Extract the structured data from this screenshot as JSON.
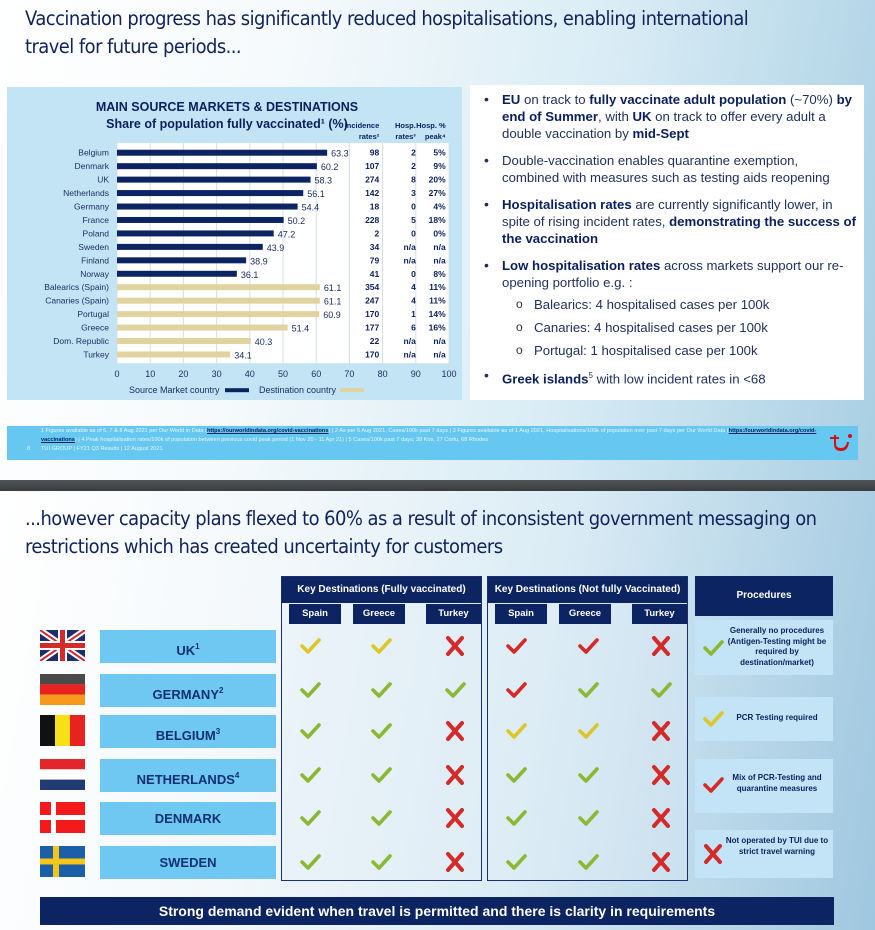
{
  "slide1": {
    "title": "Vaccination progress has significantly reduced hospitalisations, enabling international travel for future periods...",
    "title_line1": "Vaccination progress has significantly reduced hospitalisations, enabling international",
    "title_line2": "travel for future periods...",
    "bullets": {
      "b1": {
        "p1": "EU",
        "p2": " on track to ",
        "p3": "fully vaccinate adult population",
        "p4": " (~70%) ",
        "p5": "by end of Summer",
        "p6": ", with ",
        "p7": "UK",
        "p8": " on track to offer every adult a double vaccination by ",
        "p9": "mid-Sept"
      },
      "b2": "Double-vaccination enables quarantine exemption, combined with measures such as testing aids reopening",
      "b3": {
        "p1": "Hospitalisation rates",
        "p2": " are currently significantly lower, in spite of rising incident rates, ",
        "p3": "demonstrating the success of the vaccination"
      },
      "b4": {
        "p1": "Low hospitalisation rates",
        "p2": " across markets support our re-opening portfolio e.g. :"
      },
      "sub": [
        "Balearics: 4 hospitalised cases per 100k",
        "Canaries: 4 hospitalised cases per 100k",
        "Portugal: 1 hospitalised case per 100k"
      ],
      "b5": {
        "p1": "Greek islands",
        "sup": "5",
        "p2": " with low incident rates in <68"
      }
    },
    "footer": {
      "fn_part1": "1  Figures available as of  6, 7 & 8 Aug 2021 per Our World in Data (",
      "link1": "https://ourworldindata.org/covid-vaccinations",
      "fn_part2": ") | 2 As per 5 Aug 2021, Cases/100k past 7 days | 3 Figures available as of 1 Aug 2021, Hospitalisations/100k of population over past 7 days per Our World Data (",
      "link2": "https://ourworldindata.org/covid-vaccinations",
      "fn_part3": ") | 4 Peak hospitalisation rates/100k of population between previous covid peak period (1 Nov 20 - 11 Apr 21) | 5 Cases/100k past 7 days; 38 Kos, 27 Corfu, 68 Rhodes",
      "page": "8",
      "meta": "TUI GROUP  |  FY21 Q3 Results  |  12 August 2021",
      "logo": "tui-smile-logo",
      "logo_color": "#d40e14"
    }
  },
  "chart_data": {
    "type": "bar",
    "orientation": "horizontal",
    "title": "MAIN SOURCE MARKETS & DESTINATIONS",
    "subtitle": "Share of population fully vaccinated¹ (%)",
    "categories": [
      "Belgium",
      "Denmark",
      "UK",
      "Netherlands",
      "Germany",
      "France",
      "Poland",
      "Sweden",
      "Finland",
      "Norway",
      "Balearics (Spain)",
      "Canaries (Spain)",
      "Portugal",
      "Greece",
      "Dom. Republic",
      "Turkey"
    ],
    "values": [
      63.3,
      60.2,
      58.3,
      56.1,
      54.4,
      50.2,
      47.2,
      43.9,
      38.9,
      36.1,
      61.1,
      61.1,
      60.9,
      51.4,
      40.3,
      34.1
    ],
    "value_labels": [
      "63.3",
      "60.2",
      "58.3",
      "56.1",
      "54.4",
      "50.2",
      "47.2",
      "43.9",
      "38.9",
      "36.1",
      "61.1",
      "61.1",
      "60.9",
      "51.4",
      "40.3",
      "34.1"
    ],
    "group": [
      "source",
      "source",
      "source",
      "source",
      "source",
      "source",
      "source",
      "source",
      "source",
      "source",
      "dest",
      "dest",
      "dest",
      "dest",
      "dest",
      "dest"
    ],
    "series": [
      {
        "name": "Source Market country",
        "color": "#0c2461"
      },
      {
        "name": "Destination country",
        "color": "#e1d3a0"
      }
    ],
    "xlim": [
      0,
      100
    ],
    "xticks": [
      "0",
      "10",
      "20",
      "30",
      "40",
      "50",
      "60",
      "70",
      "80",
      "90",
      "100"
    ],
    "grid": true,
    "legend": "bottom",
    "table": {
      "headers": [
        {
          "l1": "Incidence",
          "l2": "rates²"
        },
        {
          "l1": "Hosp.",
          "l2": "rates³"
        },
        {
          "l1": "Hosp. %",
          "l2": "peak⁴"
        }
      ],
      "rows": [
        [
          "98",
          "2",
          "5%"
        ],
        [
          "107",
          "2",
          "9%"
        ],
        [
          "274",
          "8",
          "20%"
        ],
        [
          "142",
          "3",
          "27%"
        ],
        [
          "18",
          "0",
          "4%"
        ],
        [
          "228",
          "5",
          "18%"
        ],
        [
          "2",
          "0",
          "0%"
        ],
        [
          "34",
          "n/a",
          "n/a"
        ],
        [
          "79",
          "n/a",
          "n/a"
        ],
        [
          "41",
          "0",
          "8%"
        ],
        [
          "354",
          "4",
          "11%"
        ],
        [
          "247",
          "4",
          "11%"
        ],
        [
          "170",
          "1",
          "14%"
        ],
        [
          "177",
          "6",
          "16%"
        ],
        [
          "22",
          "n/a",
          "n/a"
        ],
        [
          "170",
          "n/a",
          "n/a"
        ]
      ]
    }
  },
  "slide2": {
    "title_line1": "...however capacity plans flexed to 60% as a result of inconsistent government messaging on",
    "title_line2": "restrictions which has created uncertainty for customers",
    "groups": [
      "Key Destinations (Fully vaccinated)",
      "Key Destinations (Not fully Vaccinated)"
    ],
    "destinations": [
      "Spain",
      "Greece",
      "Turkey"
    ],
    "procedures_header": "Procedures",
    "markets": [
      {
        "name": "UK",
        "sup": "1",
        "flag": "uk-flag",
        "marks": [
          "check-yellow",
          "check-yellow",
          "cross-red",
          "check-red",
          "check-red",
          "cross-red"
        ]
      },
      {
        "name": "GERMANY",
        "sup": "2",
        "flag": "germany-flag",
        "marks": [
          "check-green",
          "check-green",
          "check-green",
          "check-red",
          "check-green",
          "check-green"
        ]
      },
      {
        "name": "BELGIUM",
        "sup": "3",
        "flag": "belgium-flag",
        "marks": [
          "check-green",
          "check-green",
          "cross-red",
          "check-yellow",
          "check-yellow",
          "cross-red"
        ]
      },
      {
        "name": "NETHERLANDS",
        "sup": "4",
        "flag": "netherlands-flag",
        "marks": [
          "check-green",
          "check-green",
          "cross-red",
          "check-green",
          "check-green",
          "cross-red"
        ]
      },
      {
        "name": "DENMARK",
        "sup": "",
        "flag": "denmark-flag",
        "marks": [
          "check-green",
          "check-green",
          "cross-red",
          "check-green",
          "check-green",
          "cross-red"
        ]
      },
      {
        "name": "SWEDEN",
        "sup": "",
        "flag": "sweden-flag",
        "marks": [
          "check-green",
          "check-green",
          "cross-red",
          "check-green",
          "check-green",
          "cross-red"
        ]
      }
    ],
    "legend": [
      {
        "mark": "check-green",
        "text": "Generally no procedures (Antigen-Testing might be required by destination/market)"
      },
      {
        "mark": "check-yellow",
        "text": "PCR Testing required"
      },
      {
        "mark": "check-red",
        "text": "Mix of PCR-Testing and quarantine measures"
      },
      {
        "mark": "cross-red",
        "text": "Not operated by TUI due to strict travel warning"
      }
    ],
    "mark_colors": {
      "green": "#8ab833",
      "yellow": "#dcc62c",
      "red": "#d42a2a"
    },
    "banner": "Strong demand evident when travel is permitted and there is clarity in requirements"
  }
}
